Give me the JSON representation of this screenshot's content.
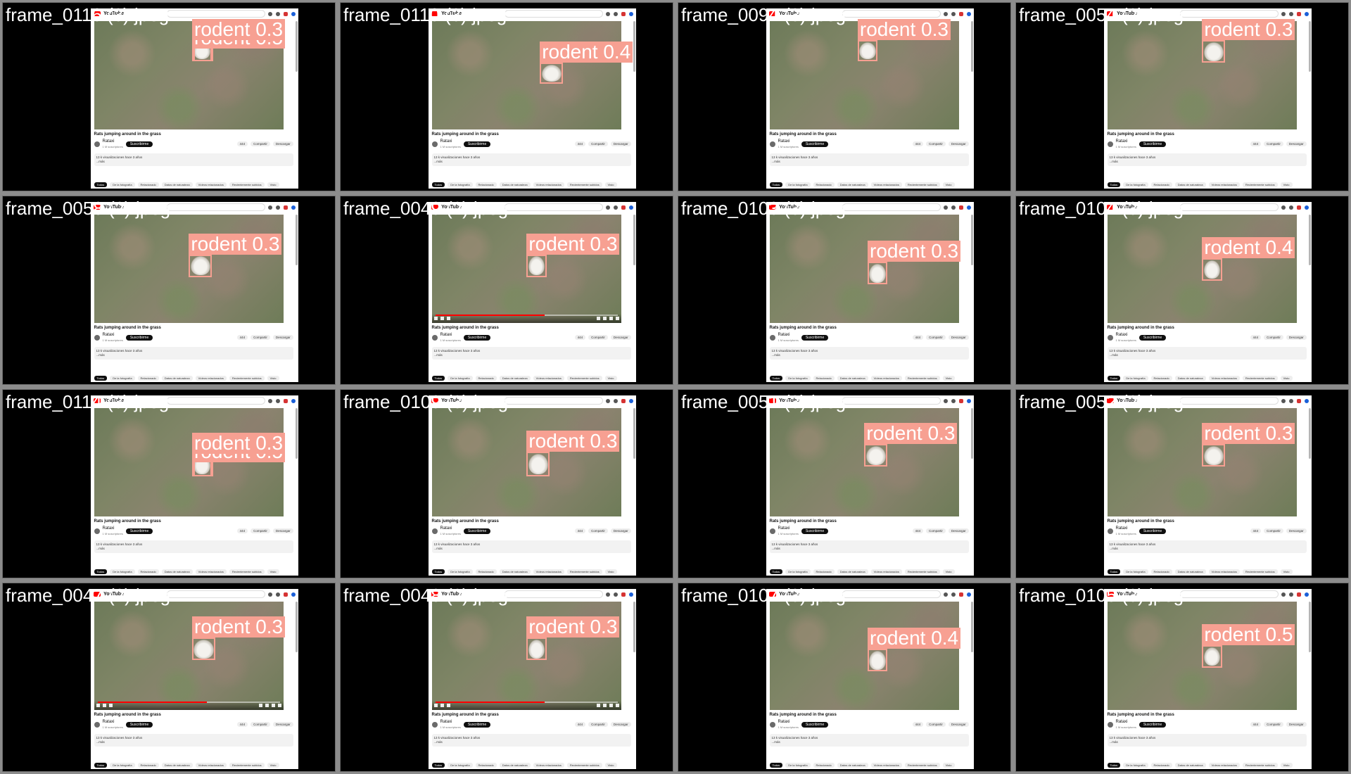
{
  "grid_name": "detection-results-grid",
  "colors": {
    "background": "#8c8c8c",
    "detection": "#f7a092",
    "frame_label": "#ffffff"
  },
  "youtube_page": {
    "logo_text": "YouTube",
    "video_title": "Rats jumping around in the grass",
    "channel": "Rataxi",
    "channel_subs": "1 M suscriptores",
    "subscribe_label": "Suscribirme",
    "likes": "444",
    "share_label": "Compartir",
    "download_label": "Descargar",
    "description": "13 k visualizaciones hace 3 años",
    "description_more": "...más",
    "chips": [
      "Todos",
      "De la fotografía",
      "Relacionado",
      "Datos de naturaleza",
      "Vídeos relacionados",
      "Recientemente subidos",
      "Visto"
    ]
  },
  "tiles": [
    {
      "frame_label": "frame_0116 (3).jpeg",
      "detections": [
        {
          "label": "rodent 0.3"
        },
        {
          "label": "rodent 0.5"
        }
      ],
      "controls_visible": false
    },
    {
      "frame_label": "frame_0110 (3).jpeg",
      "detections": [
        {
          "label": "rodent 0.4"
        }
      ],
      "controls_visible": false
    },
    {
      "frame_label": "frame_0094 (3).jpeg",
      "detections": [
        {
          "label": "rodent 0.3"
        }
      ],
      "controls_visible": false
    },
    {
      "frame_label": "frame_0054 (2).jpeg",
      "detections": [
        {
          "label": "rodent 0.3"
        }
      ],
      "controls_visible": false
    },
    {
      "frame_label": "frame_0058 (2).jpeg",
      "detections": [
        {
          "label": "rodent 0.3"
        }
      ],
      "controls_visible": false
    },
    {
      "frame_label": "frame_0049 (2).jpeg",
      "detections": [
        {
          "label": "rodent 0.3"
        }
      ],
      "controls_visible": true
    },
    {
      "frame_label": "frame_0103 (3).jpeg",
      "detections": [
        {
          "label": "rodent 0.3"
        }
      ],
      "controls_visible": false
    },
    {
      "frame_label": "frame_0104 (3).jpeg",
      "detections": [
        {
          "label": "rodent 0.4"
        }
      ],
      "controls_visible": false
    },
    {
      "frame_label": "frame_0114 (3).jpeg",
      "detections": [
        {
          "label": "rodent 0.3"
        },
        {
          "label": "rodent 0.5"
        }
      ],
      "controls_visible": false
    },
    {
      "frame_label": "frame_0109 (3).jpeg",
      "detections": [
        {
          "label": "rodent 0.3"
        }
      ],
      "controls_visible": false
    },
    {
      "frame_label": "frame_0051 (3).jpeg",
      "detections": [
        {
          "label": "rodent 0.3"
        }
      ],
      "controls_visible": false
    },
    {
      "frame_label": "frame_0052 (2).jpeg",
      "detections": [
        {
          "label": "rodent 0.3"
        }
      ],
      "controls_visible": false
    },
    {
      "frame_label": "frame_0047 (2).jpeg",
      "detections": [
        {
          "label": "rodent 0.3"
        }
      ],
      "controls_visible": true
    },
    {
      "frame_label": "frame_0048 (2).jpeg",
      "detections": [
        {
          "label": "rodent 0.3"
        }
      ],
      "controls_visible": true
    },
    {
      "frame_label": "frame_0107 (3).jpeg",
      "detections": [
        {
          "label": "rodent 0.4"
        }
      ],
      "controls_visible": false
    },
    {
      "frame_label": "frame_0105 (3).jpeg",
      "detections": [
        {
          "label": "rodent 0.5"
        }
      ],
      "controls_visible": false
    }
  ]
}
